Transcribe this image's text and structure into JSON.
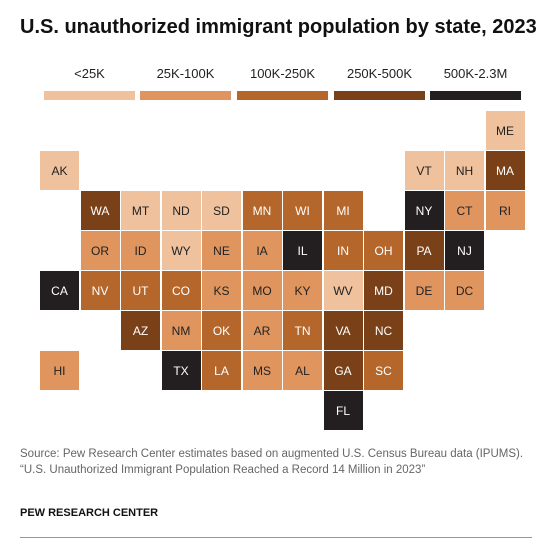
{
  "title": "U.S. unauthorized immigrant population by state, 2023",
  "legend": [
    {
      "label": "<25K",
      "color": "#efc19c"
    },
    {
      "label": "25K-100K",
      "color": "#e0955e"
    },
    {
      "label": "100K-250K",
      "color": "#b5662a"
    },
    {
      "label": "250K-500K",
      "color": "#7a4118"
    },
    {
      "label": "500K-2.3M",
      "color": "#231f20"
    }
  ],
  "states": [
    {
      "abbr": "ME",
      "bin": 0
    },
    {
      "abbr": "AK",
      "bin": 0
    },
    {
      "abbr": "VT",
      "bin": 0
    },
    {
      "abbr": "NH",
      "bin": 0
    },
    {
      "abbr": "MA",
      "bin": 3
    },
    {
      "abbr": "WA",
      "bin": 3
    },
    {
      "abbr": "MT",
      "bin": 0
    },
    {
      "abbr": "ND",
      "bin": 0
    },
    {
      "abbr": "SD",
      "bin": 0
    },
    {
      "abbr": "MN",
      "bin": 2
    },
    {
      "abbr": "WI",
      "bin": 2
    },
    {
      "abbr": "MI",
      "bin": 2
    },
    {
      "abbr": "NY",
      "bin": 4
    },
    {
      "abbr": "CT",
      "bin": 1
    },
    {
      "abbr": "RI",
      "bin": 1
    },
    {
      "abbr": "OR",
      "bin": 1
    },
    {
      "abbr": "ID",
      "bin": 1
    },
    {
      "abbr": "WY",
      "bin": 0
    },
    {
      "abbr": "NE",
      "bin": 1
    },
    {
      "abbr": "IA",
      "bin": 1
    },
    {
      "abbr": "IL",
      "bin": 4
    },
    {
      "abbr": "IN",
      "bin": 2
    },
    {
      "abbr": "OH",
      "bin": 2
    },
    {
      "abbr": "PA",
      "bin": 3
    },
    {
      "abbr": "NJ",
      "bin": 4
    },
    {
      "abbr": "CA",
      "bin": 4
    },
    {
      "abbr": "NV",
      "bin": 2
    },
    {
      "abbr": "UT",
      "bin": 2
    },
    {
      "abbr": "CO",
      "bin": 2
    },
    {
      "abbr": "KS",
      "bin": 1
    },
    {
      "abbr": "MO",
      "bin": 1
    },
    {
      "abbr": "KY",
      "bin": 1
    },
    {
      "abbr": "WV",
      "bin": 0
    },
    {
      "abbr": "MD",
      "bin": 3
    },
    {
      "abbr": "DE",
      "bin": 1
    },
    {
      "abbr": "DC",
      "bin": 1
    },
    {
      "abbr": "AZ",
      "bin": 3
    },
    {
      "abbr": "NM",
      "bin": 1
    },
    {
      "abbr": "OK",
      "bin": 2
    },
    {
      "abbr": "AR",
      "bin": 1
    },
    {
      "abbr": "TN",
      "bin": 2
    },
    {
      "abbr": "VA",
      "bin": 3
    },
    {
      "abbr": "NC",
      "bin": 3
    },
    {
      "abbr": "HI",
      "bin": 1
    },
    {
      "abbr": "TX",
      "bin": 4
    },
    {
      "abbr": "LA",
      "bin": 2
    },
    {
      "abbr": "MS",
      "bin": 1
    },
    {
      "abbr": "AL",
      "bin": 1
    },
    {
      "abbr": "GA",
      "bin": 3
    },
    {
      "abbr": "SC",
      "bin": 2
    },
    {
      "abbr": "FL",
      "bin": 4
    }
  ],
  "source": [
    "Source: Pew Research Center estimates based on augmented U.S. Census Bureau data (IPUMS).",
    "“U.S. Unauthorized Immigrant Population Reached a Record 14 Million in 2023”"
  ],
  "brand": "PEW RESEARCH CENTER"
}
